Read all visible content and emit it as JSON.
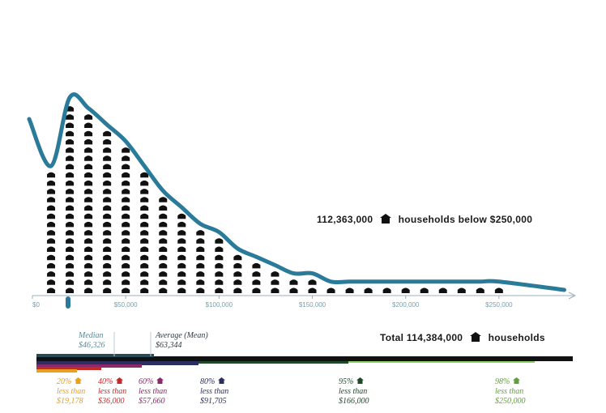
{
  "chart_data": {
    "type": "bar",
    "unit_note": "each column = count of household icons (1 icon per ~1 million households)",
    "xlim": [
      0,
      290000
    ],
    "bin_width": 10000,
    "bins_start": [
      5000,
      15000,
      25000,
      35000,
      45000,
      55000,
      65000,
      75000,
      85000,
      95000,
      105000,
      115000,
      125000,
      135000,
      145000,
      155000,
      165000,
      175000,
      185000,
      195000,
      205000,
      215000,
      225000,
      235000,
      245000
    ],
    "values": [
      15,
      23,
      22,
      20,
      18,
      15,
      12,
      10,
      8,
      7,
      5,
      4,
      3,
      2,
      2,
      1,
      1,
      1,
      1,
      1,
      1,
      1,
      1,
      1,
      1
    ],
    "x_ticks": [
      {
        "value": 0,
        "label": "$0"
      },
      {
        "value": 50000,
        "label": "$50,000"
      },
      {
        "value": 100000,
        "label": "$100,000"
      },
      {
        "value": 150000,
        "label": "$150,000"
      },
      {
        "value": 200000,
        "label": "$200,000"
      },
      {
        "value": 250000,
        "label": "$250,000"
      }
    ],
    "annotations": {
      "below": {
        "value": "112,363,000",
        "text": "households below $250,000"
      },
      "total": {
        "value": "Total 114,384,000",
        "text": "households"
      }
    },
    "median": {
      "label": "Median",
      "value": "$46,326",
      "x": 46326
    },
    "mean": {
      "label": "Average (Mean)",
      "value": "$63,344",
      "x": 63344
    },
    "percentiles": [
      {
        "pct": "20%",
        "less": "less than",
        "value": "$19,178",
        "color": "#e8a020"
      },
      {
        "pct": "40%",
        "less": "less than",
        "value": "$36,000",
        "color": "#c42a2a"
      },
      {
        "pct": "60%",
        "less": "less than",
        "value": "$57,660",
        "color": "#8a2a6a"
      },
      {
        "pct": "80%",
        "less": "less than",
        "value": "$91,705",
        "color": "#2a2f60"
      },
      {
        "pct": "95%",
        "less": "less than",
        "value": "$166,000",
        "color": "#1f4a2a"
      },
      {
        "pct": "98%",
        "less": "less than",
        "value": "$250,000",
        "color": "#5fa03a"
      }
    ],
    "colors": {
      "curve": "#2a7a9a",
      "icon": "#111111",
      "axis": "#9ab0b8"
    }
  }
}
